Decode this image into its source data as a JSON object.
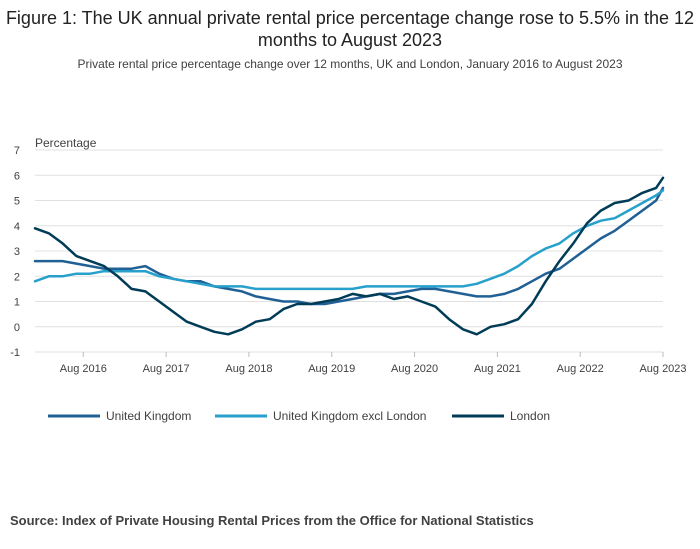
{
  "header": {
    "title": "Figure 1: The UK annual private rental price percentage change rose to 5.5% in the 12 months to August 2023",
    "subtitle": "Private rental price percentage change over 12 months, UK and London, January 2016 to August 2023"
  },
  "footer": {
    "source": "Source: Index of Private Housing Rental Prices from the Office for National Statistics"
  },
  "chart_data": {
    "type": "line",
    "ylabel": "Percentage",
    "ylim": [
      -1,
      7
    ],
    "yticks": [
      -1,
      0,
      1,
      2,
      3,
      4,
      5,
      6,
      7
    ],
    "x_tick_labels": [
      "Aug 2016",
      "Aug 2017",
      "Aug 2018",
      "Aug 2019",
      "Aug 2020",
      "Aug 2021",
      "Aug 2022",
      "Aug 2023"
    ],
    "x_range": [
      "Jan 2016",
      "Aug 2023"
    ],
    "grid": "horizontal",
    "legend_position": "bottom",
    "series": [
      {
        "name": "United Kingdom",
        "color": "#206095",
        "x": [
          "2016-01",
          "2016-03",
          "2016-05",
          "2016-07",
          "2016-09",
          "2016-11",
          "2017-01",
          "2017-03",
          "2017-05",
          "2017-07",
          "2017-09",
          "2017-11",
          "2018-01",
          "2018-03",
          "2018-05",
          "2018-07",
          "2018-09",
          "2018-11",
          "2019-01",
          "2019-03",
          "2019-05",
          "2019-07",
          "2019-09",
          "2019-11",
          "2020-01",
          "2020-03",
          "2020-05",
          "2020-07",
          "2020-09",
          "2020-11",
          "2021-01",
          "2021-03",
          "2021-05",
          "2021-07",
          "2021-09",
          "2021-11",
          "2022-01",
          "2022-03",
          "2022-05",
          "2022-07",
          "2022-09",
          "2022-11",
          "2023-01",
          "2023-03",
          "2023-05",
          "2023-07",
          "2023-08"
        ],
        "values": [
          2.6,
          2.6,
          2.6,
          2.5,
          2.4,
          2.3,
          2.3,
          2.3,
          2.4,
          2.1,
          1.9,
          1.8,
          1.8,
          1.6,
          1.5,
          1.4,
          1.2,
          1.1,
          1.0,
          1.0,
          0.9,
          0.9,
          1.0,
          1.1,
          1.2,
          1.3,
          1.3,
          1.4,
          1.5,
          1.5,
          1.4,
          1.3,
          1.2,
          1.2,
          1.3,
          1.5,
          1.8,
          2.1,
          2.3,
          2.7,
          3.1,
          3.5,
          3.8,
          4.2,
          4.6,
          5.0,
          5.5
        ]
      },
      {
        "name": "United Kingdom excl London",
        "color": "#27a0cc",
        "x": [
          "2016-01",
          "2016-03",
          "2016-05",
          "2016-07",
          "2016-09",
          "2016-11",
          "2017-01",
          "2017-03",
          "2017-05",
          "2017-07",
          "2017-09",
          "2017-11",
          "2018-01",
          "2018-03",
          "2018-05",
          "2018-07",
          "2018-09",
          "2018-11",
          "2019-01",
          "2019-03",
          "2019-05",
          "2019-07",
          "2019-09",
          "2019-11",
          "2020-01",
          "2020-03",
          "2020-05",
          "2020-07",
          "2020-09",
          "2020-11",
          "2021-01",
          "2021-03",
          "2021-05",
          "2021-07",
          "2021-09",
          "2021-11",
          "2022-01",
          "2022-03",
          "2022-05",
          "2022-07",
          "2022-09",
          "2022-11",
          "2023-01",
          "2023-03",
          "2023-05",
          "2023-07",
          "2023-08"
        ],
        "values": [
          1.8,
          2.0,
          2.0,
          2.1,
          2.1,
          2.2,
          2.2,
          2.2,
          2.2,
          2.0,
          1.9,
          1.8,
          1.7,
          1.6,
          1.6,
          1.6,
          1.5,
          1.5,
          1.5,
          1.5,
          1.5,
          1.5,
          1.5,
          1.5,
          1.6,
          1.6,
          1.6,
          1.6,
          1.6,
          1.6,
          1.6,
          1.6,
          1.7,
          1.9,
          2.1,
          2.4,
          2.8,
          3.1,
          3.3,
          3.7,
          4.0,
          4.2,
          4.3,
          4.6,
          4.9,
          5.2,
          5.4
        ]
      },
      {
        "name": "London",
        "color": "#003c57",
        "x": [
          "2016-01",
          "2016-03",
          "2016-05",
          "2016-07",
          "2016-09",
          "2016-11",
          "2017-01",
          "2017-03",
          "2017-05",
          "2017-07",
          "2017-09",
          "2017-11",
          "2018-01",
          "2018-03",
          "2018-05",
          "2018-07",
          "2018-09",
          "2018-11",
          "2019-01",
          "2019-03",
          "2019-05",
          "2019-07",
          "2019-09",
          "2019-11",
          "2020-01",
          "2020-03",
          "2020-05",
          "2020-07",
          "2020-09",
          "2020-11",
          "2021-01",
          "2021-03",
          "2021-05",
          "2021-07",
          "2021-09",
          "2021-11",
          "2022-01",
          "2022-03",
          "2022-05",
          "2022-07",
          "2022-09",
          "2022-11",
          "2023-01",
          "2023-03",
          "2023-05",
          "2023-07",
          "2023-08"
        ],
        "values": [
          3.9,
          3.7,
          3.3,
          2.8,
          2.6,
          2.4,
          2.0,
          1.5,
          1.4,
          1.0,
          0.6,
          0.2,
          0.0,
          -0.2,
          -0.3,
          -0.1,
          0.2,
          0.3,
          0.7,
          0.9,
          0.9,
          1.0,
          1.1,
          1.3,
          1.2,
          1.3,
          1.1,
          1.2,
          1.0,
          0.8,
          0.3,
          -0.1,
          -0.3,
          0.0,
          0.1,
          0.3,
          0.9,
          1.8,
          2.6,
          3.3,
          4.1,
          4.6,
          4.9,
          5.0,
          5.3,
          5.5,
          5.9
        ]
      }
    ]
  }
}
